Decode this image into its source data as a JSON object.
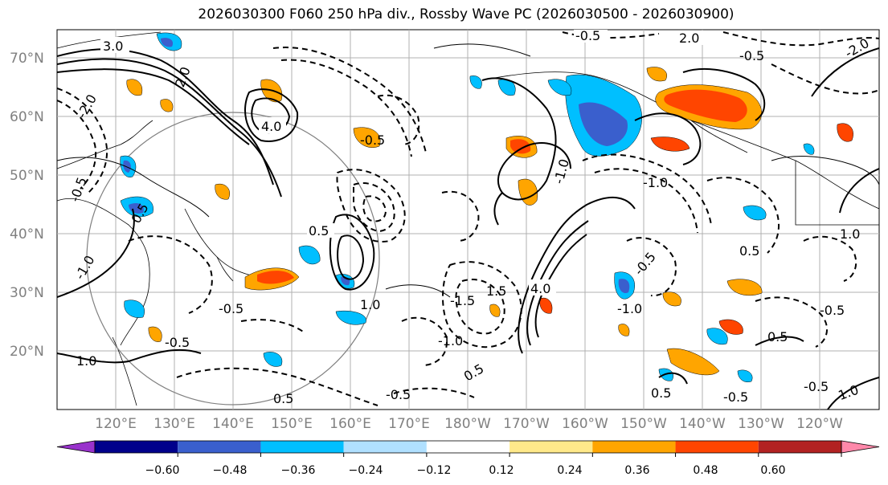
{
  "title": "2026030300 F060 250 hPa div., Rossby Wave PC (2026030500 - 2026030900)",
  "lat_labels": [
    "70°N",
    "60°N",
    "50°N",
    "40°N",
    "30°N",
    "20°N"
  ],
  "lon_labels": [
    "120°E",
    "130°E",
    "140°E",
    "150°E",
    "160°E",
    "170°E",
    "180°W",
    "170°W",
    "160°W",
    "150°W",
    "140°W",
    "130°W",
    "120°W"
  ],
  "contour_labels": [
    "3.0",
    "2.0",
    "-2.0",
    "4.0",
    "-0.5",
    "-1.0",
    "0.5",
    "1.0",
    "1.5",
    "-1.5",
    "-0.5",
    "4.0",
    "0.5",
    "-1.0",
    "-0.5",
    "-0.5",
    "1.0",
    "0.5",
    "-0.5",
    "-1.0",
    "0.5",
    "0.5",
    "-0.5",
    "-0.5",
    "-0.5",
    "1.0",
    "-0.5",
    "2.0",
    "-2.0",
    "0.5",
    "-0.5",
    "-1.0",
    "-1.0",
    "0.5",
    "1.0",
    "-0.5"
  ],
  "colorbar": {
    "ticks": [
      "−0.60",
      "−0.48",
      "−0.36",
      "−0.24",
      "−0.12",
      "0.12",
      "0.24",
      "0.36",
      "0.48",
      "0.60"
    ],
    "colors": [
      "#9932cc",
      "#00008b",
      "#3a5fcd",
      "#00bfff",
      "#b0e0ff",
      "#ffffff",
      "#ffe98a",
      "#ffa500",
      "#ff4500",
      "#b22222",
      "#ff88aa"
    ]
  },
  "shade_colors": {
    "pos_light": "#ffa500",
    "pos_strong": "#ff4500",
    "pos_faint": "#ffe98a",
    "neg_light": "#00bfff",
    "neg_strong": "#3a5fcd",
    "neg_faint": "#b0e0ff"
  }
}
